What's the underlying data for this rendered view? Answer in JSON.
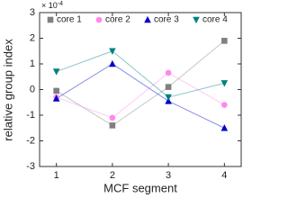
{
  "chart_data": {
    "type": "line",
    "y_label": "relative group index",
    "x_label": "MCF segment",
    "y_scale_label": {
      "base": "× 10",
      "exponent": "-4"
    },
    "x": [
      1,
      2,
      3,
      4
    ],
    "series": [
      {
        "name": "core 1",
        "color": "#808080",
        "marker": "square",
        "values": [
          -0.05,
          -1.4,
          0.1,
          1.9
        ]
      },
      {
        "name": "core 2",
        "color": "#ff88f0",
        "marker": "circle",
        "values": [
          -0.3,
          -1.1,
          0.65,
          -0.6
        ]
      },
      {
        "name": "core 3",
        "color": "#0000cc",
        "marker": "triangle-up",
        "values": [
          -0.35,
          1.0,
          -0.45,
          -1.5
        ]
      },
      {
        "name": "core 4",
        "color": "#008080",
        "marker": "triangle-down",
        "values": [
          0.7,
          1.5,
          -0.3,
          0.25
        ]
      }
    ],
    "xlim": [
      0.7,
      4.3
    ],
    "xticks": [
      1,
      2,
      3,
      4
    ],
    "ylim": [
      -3,
      3
    ],
    "yticks": [
      -3,
      -2,
      -1,
      0,
      1,
      2,
      3
    ],
    "legend": "top"
  }
}
